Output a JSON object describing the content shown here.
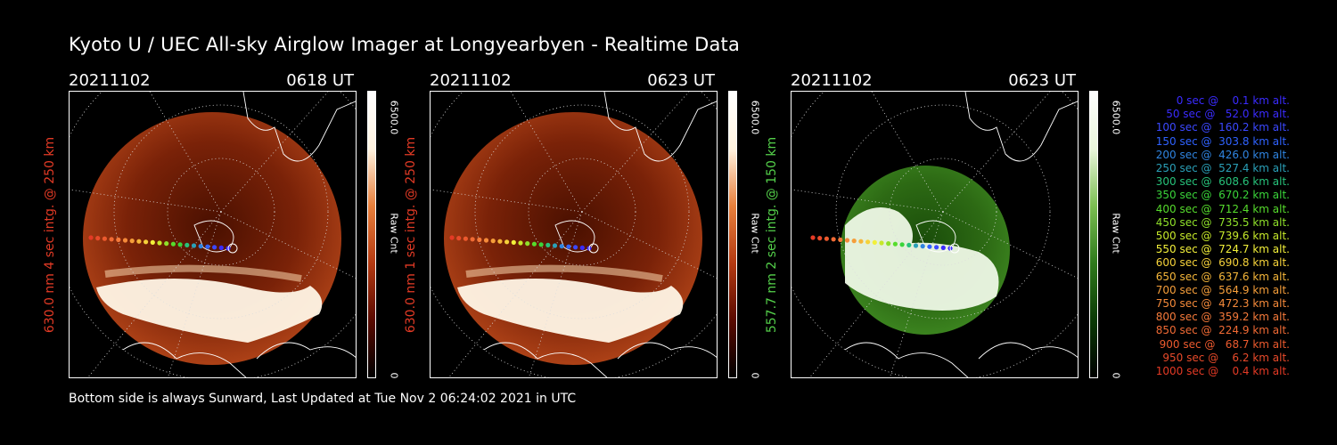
{
  "title": "Kyoto U / UEC All-sky Airglow Imager at Longyearbyen - Realtime Data",
  "footer": "Bottom side is always Sunward, Last Updated at Tue Nov  2 06:24:02 2021 in UTC",
  "panels": [
    {
      "date": "20211102",
      "time": "0618 UT",
      "ylabel": "630.0 nm 4 sec intg. @ 250 km",
      "cmax": "6500.0",
      "cmin": "0",
      "clabel": "Raw Cnt",
      "color": "#e23a25",
      "theme": "red"
    },
    {
      "date": "20211102",
      "time": "0623 UT",
      "ylabel": "630.0 nm 1 sec intg. @ 250 km",
      "cmax": "6500.0",
      "cmin": "0",
      "clabel": "Raw Cnt",
      "color": "#e23a25",
      "theme": "red"
    },
    {
      "date": "20211102",
      "time": "0623 UT",
      "ylabel": "557.7 nm 2 sec intg. @ 150 km",
      "cmax": "6500.0",
      "cmin": "0",
      "clabel": "Raw Cnt",
      "color": "#54d04a",
      "theme": "green"
    }
  ],
  "legend": [
    {
      "text": "0 sec @    0.1 km alt.",
      "color": "#3a2bff"
    },
    {
      "text": "50 sec @   52.0 km alt.",
      "color": "#3a2bff"
    },
    {
      "text": "100 sec @  160.2 km alt.",
      "color": "#3b48ff"
    },
    {
      "text": "150 sec @  303.8 km alt.",
      "color": "#2f62ff"
    },
    {
      "text": "200 sec @  426.0 km alt.",
      "color": "#2f84e0"
    },
    {
      "text": "250 sec @  527.4 km alt.",
      "color": "#2aa0b8"
    },
    {
      "text": "300 sec @  608.6 km alt.",
      "color": "#27c27a"
    },
    {
      "text": "350 sec @  670.2 km alt.",
      "color": "#3ad43a"
    },
    {
      "text": "400 sec @  712.4 km alt.",
      "color": "#56dc2c"
    },
    {
      "text": "450 sec @  735.5 km alt.",
      "color": "#8fe02a"
    },
    {
      "text": "500 sec @  739.6 km alt.",
      "color": "#c6e82a"
    },
    {
      "text": "550 sec @  724.7 km alt.",
      "color": "#f2f03a"
    },
    {
      "text": "600 sec @  690.8 km alt.",
      "color": "#f5d23a"
    },
    {
      "text": "650 sec @  637.6 km alt.",
      "color": "#f5b63a"
    },
    {
      "text": "700 sec @  564.9 km alt.",
      "color": "#f59e3a"
    },
    {
      "text": "750 sec @  472.3 km alt.",
      "color": "#f58a3a"
    },
    {
      "text": "800 sec @  359.2 km alt.",
      "color": "#f57a3a"
    },
    {
      "text": "850 sec @  224.9 km alt.",
      "color": "#f06a34"
    },
    {
      "text": "900 sec @   68.7 km alt.",
      "color": "#ec5a2e"
    },
    {
      "text": "950 sec @    6.2 km alt.",
      "color": "#e84a2a"
    },
    {
      "text": "1000 sec @    0.4 km alt.",
      "color": "#e43a25"
    }
  ]
}
